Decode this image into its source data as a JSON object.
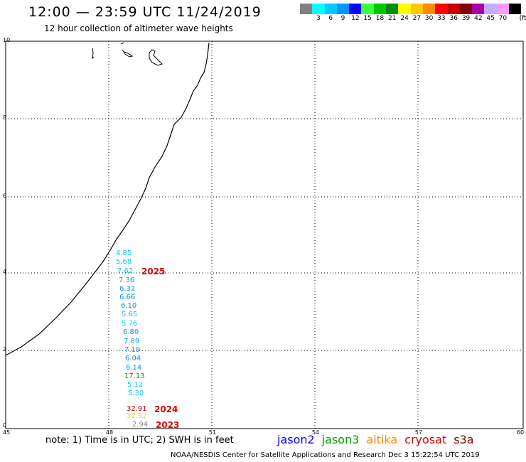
{
  "header": {
    "title": "12:00 — 23:59 UTC 11/24/2019",
    "subtitle": "12 hour collection of altimeter wave heights"
  },
  "legend": {
    "unit": "(ft)",
    "items": [
      {
        "label": "",
        "color": "#808080"
      },
      {
        "label": "3",
        "color": "#00ffff"
      },
      {
        "label": "6",
        "color": "#00c8ff"
      },
      {
        "label": "9",
        "color": "#0096ff"
      },
      {
        "label": "12",
        "color": "#0000ff"
      },
      {
        "label": "15",
        "color": "#3cff3c"
      },
      {
        "label": "18",
        "color": "#00c800"
      },
      {
        "label": "21",
        "color": "#008c00"
      },
      {
        "label": "24",
        "color": "#ffff00"
      },
      {
        "label": "27",
        "color": "#ffc800"
      },
      {
        "label": "30",
        "color": "#ff8c00"
      },
      {
        "label": "33",
        "color": "#ff0000"
      },
      {
        "label": "36",
        "color": "#c80000"
      },
      {
        "label": "39",
        "color": "#820000"
      },
      {
        "label": "42",
        "color": "#aa00aa"
      },
      {
        "label": "45",
        "color": "#c8aaff"
      },
      {
        "label": "70",
        "color": "#ff96ff"
      },
      {
        "label": "",
        "color": "#000000"
      }
    ]
  },
  "axes": {
    "lat_ticks": [
      "10",
      "8",
      "6",
      "4",
      "2",
      "0"
    ],
    "lon_ticks": [
      "45",
      "48",
      "51",
      "54",
      "57",
      "60"
    ]
  },
  "observations": [
    {
      "value": "4.85",
      "color": "#00c8ff"
    },
    {
      "value": "5.68",
      "color": "#00c8ff"
    },
    {
      "value": "7.62",
      "color": "#00c8ff"
    },
    {
      "value": "7.36",
      "color": "#0096ff"
    },
    {
      "value": "6.32",
      "color": "#0096ff"
    },
    {
      "value": "6.66",
      "color": "#0096ff"
    },
    {
      "value": "6.10",
      "color": "#0096ff"
    },
    {
      "value": "5.65",
      "color": "#00c8ff"
    },
    {
      "value": "5.76",
      "color": "#00c8ff"
    },
    {
      "value": "6.80",
      "color": "#0096ff"
    },
    {
      "value": "7.89",
      "color": "#0096ff"
    },
    {
      "value": "7.19",
      "color": "#0096ff"
    },
    {
      "value": "6.04",
      "color": "#0096ff"
    },
    {
      "value": "6.14",
      "color": "#0096ff"
    },
    {
      "value": "17.13",
      "color": "#00a000"
    },
    {
      "value": "5.12",
      "color": "#00c8ff"
    },
    {
      "value": "5.30",
      "color": "#00c8ff"
    },
    {
      "value": "32.91",
      "color": "#c80000"
    },
    {
      "value": "32.92",
      "color": "#e8e800"
    },
    {
      "value": "2.94",
      "color": "#808080"
    }
  ],
  "years": [
    "2025",
    "2024",
    "2023"
  ],
  "footer": {
    "note": "note: 1) Time is in UTC; 2) SWH is in feet",
    "satellites": [
      {
        "name": "jason2",
        "color": "#0000ff"
      },
      {
        "name": "jason3",
        "color": "#00a000"
      },
      {
        "name": "altika",
        "color": "#ff8c00"
      },
      {
        "name": "cryosat",
        "color": "#e00000"
      },
      {
        "name": "s3a",
        "color": "#820000"
      }
    ],
    "credit": "NOAA/NESDIS Center for Satellite Applications and Research   Dec  3 15:22:54 UTC 2019"
  }
}
